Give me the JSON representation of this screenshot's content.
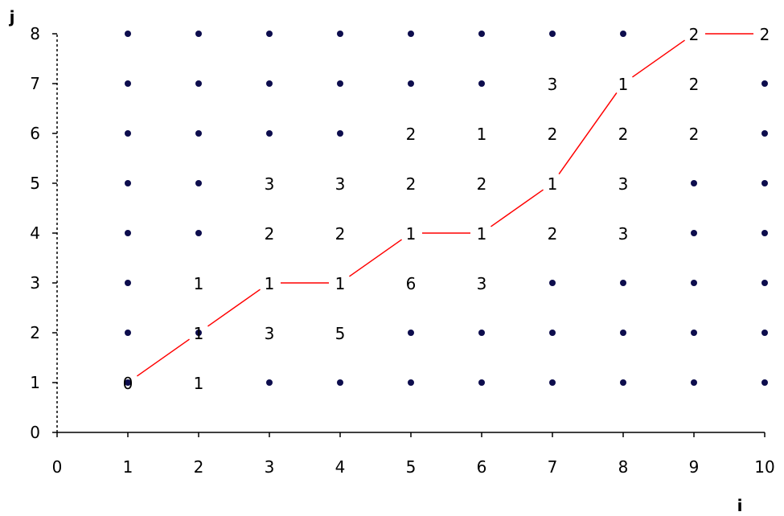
{
  "chart_data": {
    "type": "scatter",
    "xlabel": "i",
    "ylabel": "j",
    "xlim": [
      0,
      10
    ],
    "ylim": [
      0,
      8
    ],
    "x_ticks": [
      "0",
      "1",
      "2",
      "3",
      "4",
      "5",
      "6",
      "7",
      "8",
      "9",
      "10"
    ],
    "y_ticks": [
      "0",
      "1",
      "2",
      "3",
      "4",
      "5",
      "6",
      "7",
      "8"
    ],
    "grid": false,
    "colors": {
      "dots": "#0d0d4d",
      "path": "#ff0000",
      "axis": "#000000"
    },
    "dots": [
      [
        1,
        1
      ],
      [
        1,
        2
      ],
      [
        1,
        3
      ],
      [
        1,
        4
      ],
      [
        1,
        5
      ],
      [
        1,
        6
      ],
      [
        1,
        7
      ],
      [
        1,
        8
      ],
      [
        2,
        2
      ],
      [
        2,
        4
      ],
      [
        2,
        5
      ],
      [
        2,
        6
      ],
      [
        2,
        7
      ],
      [
        2,
        8
      ],
      [
        3,
        1
      ],
      [
        3,
        6
      ],
      [
        3,
        7
      ],
      [
        3,
        8
      ],
      [
        4,
        1
      ],
      [
        4,
        6
      ],
      [
        4,
        7
      ],
      [
        4,
        8
      ],
      [
        5,
        1
      ],
      [
        5,
        2
      ],
      [
        5,
        7
      ],
      [
        5,
        8
      ],
      [
        6,
        1
      ],
      [
        6,
        2
      ],
      [
        6,
        7
      ],
      [
        6,
        8
      ],
      [
        7,
        1
      ],
      [
        7,
        2
      ],
      [
        7,
        3
      ],
      [
        7,
        8
      ],
      [
        8,
        1
      ],
      [
        8,
        2
      ],
      [
        8,
        3
      ],
      [
        8,
        8
      ],
      [
        9,
        1
      ],
      [
        9,
        2
      ],
      [
        9,
        3
      ],
      [
        9,
        4
      ],
      [
        9,
        5
      ],
      [
        10,
        1
      ],
      [
        10,
        2
      ],
      [
        10,
        3
      ],
      [
        10,
        4
      ],
      [
        10,
        5
      ],
      [
        10,
        6
      ],
      [
        10,
        7
      ]
    ],
    "labels": [
      {
        "x": 1,
        "y": 1,
        "text": "0"
      },
      {
        "x": 2,
        "y": 1,
        "text": "1"
      },
      {
        "x": 2,
        "y": 2,
        "text": "1"
      },
      {
        "x": 2,
        "y": 3,
        "text": "1"
      },
      {
        "x": 3,
        "y": 2,
        "text": "3"
      },
      {
        "x": 3,
        "y": 3,
        "text": "1"
      },
      {
        "x": 3,
        "y": 4,
        "text": "2"
      },
      {
        "x": 3,
        "y": 5,
        "text": "3"
      },
      {
        "x": 4,
        "y": 2,
        "text": "5"
      },
      {
        "x": 4,
        "y": 3,
        "text": "1"
      },
      {
        "x": 4,
        "y": 4,
        "text": "2"
      },
      {
        "x": 4,
        "y": 5,
        "text": "3"
      },
      {
        "x": 5,
        "y": 3,
        "text": "6"
      },
      {
        "x": 5,
        "y": 4,
        "text": "1"
      },
      {
        "x": 5,
        "y": 5,
        "text": "2"
      },
      {
        "x": 5,
        "y": 6,
        "text": "2"
      },
      {
        "x": 6,
        "y": 3,
        "text": "3"
      },
      {
        "x": 6,
        "y": 4,
        "text": "1"
      },
      {
        "x": 6,
        "y": 5,
        "text": "2"
      },
      {
        "x": 6,
        "y": 6,
        "text": "1"
      },
      {
        "x": 7,
        "y": 4,
        "text": "2"
      },
      {
        "x": 7,
        "y": 5,
        "text": "1"
      },
      {
        "x": 7,
        "y": 6,
        "text": "2"
      },
      {
        "x": 7,
        "y": 7,
        "text": "3"
      },
      {
        "x": 8,
        "y": 4,
        "text": "3"
      },
      {
        "x": 8,
        "y": 5,
        "text": "3"
      },
      {
        "x": 8,
        "y": 6,
        "text": "2"
      },
      {
        "x": 8,
        "y": 7,
        "text": "1"
      },
      {
        "x": 9,
        "y": 6,
        "text": "2"
      },
      {
        "x": 9,
        "y": 7,
        "text": "2"
      },
      {
        "x": 9,
        "y": 8,
        "text": "2"
      },
      {
        "x": 10,
        "y": 8,
        "text": "2"
      }
    ],
    "path": [
      [
        1,
        1
      ],
      [
        2,
        2
      ],
      [
        3,
        3
      ],
      [
        4,
        3
      ],
      [
        5,
        4
      ],
      [
        6,
        4
      ],
      [
        7,
        5
      ],
      [
        8,
        7
      ],
      [
        9,
        8
      ],
      [
        10,
        8
      ]
    ]
  }
}
